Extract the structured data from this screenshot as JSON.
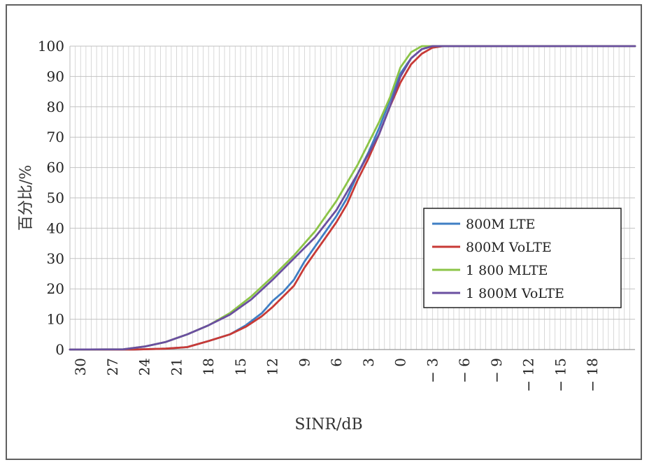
{
  "chart_data": {
    "type": "line",
    "title": "",
    "xlabel": "SINR/dB",
    "ylabel": "百分比/%",
    "xlim": [
      31,
      -22
    ],
    "ylim": [
      0,
      100
    ],
    "x_ticks": [
      30,
      27,
      24,
      21,
      18,
      15,
      12,
      9,
      6,
      3,
      0,
      -3,
      -6,
      -9,
      -12,
      -15,
      -18
    ],
    "x_tick_labels": [
      "30",
      "27",
      "24",
      "21",
      "18",
      "15",
      "12",
      "9",
      "6",
      "3",
      "0",
      "− 3",
      "− 6",
      "− 9",
      "− 12",
      "− 15",
      "− 18"
    ],
    "y_ticks": [
      0,
      10,
      20,
      30,
      40,
      50,
      60,
      70,
      80,
      90,
      100
    ],
    "y_tick_labels": [
      "0",
      "10",
      "20",
      "30",
      "40",
      "50",
      "60",
      "70",
      "80",
      "90",
      "100"
    ],
    "grid": true,
    "legend_position": "right",
    "series": [
      {
        "name": "800M LTE",
        "color": "#3f7fc4",
        "points": [
          [
            31,
            0
          ],
          [
            25,
            0
          ],
          [
            22,
            0.3
          ],
          [
            20,
            0.8
          ],
          [
            18,
            2.8
          ],
          [
            16,
            5
          ],
          [
            14.5,
            8
          ],
          [
            13,
            12
          ],
          [
            12,
            16
          ],
          [
            11,
            19
          ],
          [
            10,
            23
          ],
          [
            9,
            29
          ],
          [
            8,
            34
          ],
          [
            7,
            39
          ],
          [
            6,
            44
          ],
          [
            5,
            50
          ],
          [
            4,
            58
          ],
          [
            3,
            65
          ],
          [
            2,
            73
          ],
          [
            1,
            82
          ],
          [
            0,
            91
          ],
          [
            -1,
            96
          ],
          [
            -2,
            99
          ],
          [
            -3,
            100
          ],
          [
            -22,
            100
          ]
        ]
      },
      {
        "name": "800M VoLTE",
        "color": "#c83a36",
        "points": [
          [
            31,
            0
          ],
          [
            25,
            0
          ],
          [
            22,
            0.3
          ],
          [
            20,
            0.8
          ],
          [
            18,
            2.8
          ],
          [
            16,
            5
          ],
          [
            14.5,
            7.5
          ],
          [
            13,
            11
          ],
          [
            12,
            14
          ],
          [
            11,
            17.5
          ],
          [
            10,
            21
          ],
          [
            9,
            27
          ],
          [
            8,
            32
          ],
          [
            7,
            37
          ],
          [
            6,
            42
          ],
          [
            5,
            48
          ],
          [
            4,
            56
          ],
          [
            3,
            63
          ],
          [
            2,
            71
          ],
          [
            1,
            80
          ],
          [
            0,
            88
          ],
          [
            -1,
            94
          ],
          [
            -2,
            97.5
          ],
          [
            -3,
            99.5
          ],
          [
            -4,
            100
          ],
          [
            -22,
            100
          ]
        ]
      },
      {
        "name": "1 800 MLTE",
        "color": "#8cc448",
        "points": [
          [
            31,
            0
          ],
          [
            26,
            0.1
          ],
          [
            24,
            1
          ],
          [
            22,
            2.5
          ],
          [
            20,
            5
          ],
          [
            18,
            8
          ],
          [
            16,
            12
          ],
          [
            14,
            17.5
          ],
          [
            12,
            24
          ],
          [
            10,
            31
          ],
          [
            8,
            39
          ],
          [
            6,
            49
          ],
          [
            4,
            61
          ],
          [
            2,
            75
          ],
          [
            1,
            83
          ],
          [
            0,
            93
          ],
          [
            -1,
            98
          ],
          [
            -2,
            100
          ],
          [
            -22,
            100
          ]
        ]
      },
      {
        "name": "1 800M VoLTE",
        "color": "#6a4fa0",
        "points": [
          [
            31,
            0
          ],
          [
            26,
            0.1
          ],
          [
            24,
            1
          ],
          [
            22,
            2.5
          ],
          [
            20,
            5
          ],
          [
            18,
            8
          ],
          [
            16,
            11.5
          ],
          [
            14,
            16.5
          ],
          [
            12,
            23
          ],
          [
            10,
            30
          ],
          [
            8,
            37
          ],
          [
            6,
            46
          ],
          [
            4,
            58
          ],
          [
            2,
            71
          ],
          [
            1,
            80
          ],
          [
            0,
            90
          ],
          [
            -1,
            96
          ],
          [
            -2,
            99
          ],
          [
            -3,
            100
          ],
          [
            -22,
            100
          ]
        ]
      }
    ]
  }
}
